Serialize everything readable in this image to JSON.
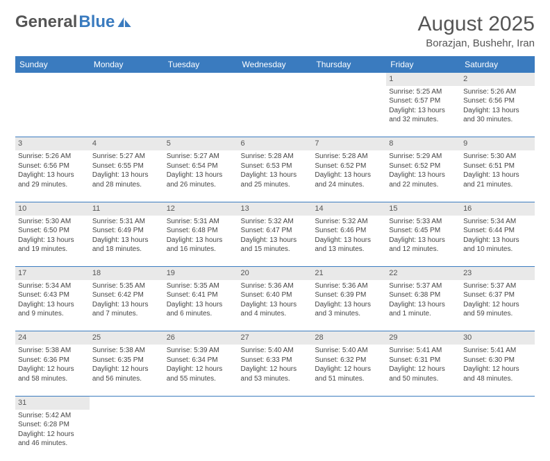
{
  "brand": {
    "part1": "General",
    "part2": "Blue"
  },
  "title": "August 2025",
  "location": "Borazjan, Bushehr, Iran",
  "colors": {
    "header_bg": "#3a7bbf",
    "header_text": "#ffffff",
    "daynum_bg": "#e9e9e9",
    "text": "#444444",
    "divider": "#3a7bbf"
  },
  "day_headers": [
    "Sunday",
    "Monday",
    "Tuesday",
    "Wednesday",
    "Thursday",
    "Friday",
    "Saturday"
  ],
  "weeks": [
    [
      null,
      null,
      null,
      null,
      null,
      {
        "d": "1",
        "sr": "5:25 AM",
        "ss": "6:57 PM",
        "dl": "13 hours and 32 minutes."
      },
      {
        "d": "2",
        "sr": "5:26 AM",
        "ss": "6:56 PM",
        "dl": "13 hours and 30 minutes."
      }
    ],
    [
      {
        "d": "3",
        "sr": "5:26 AM",
        "ss": "6:56 PM",
        "dl": "13 hours and 29 minutes."
      },
      {
        "d": "4",
        "sr": "5:27 AM",
        "ss": "6:55 PM",
        "dl": "13 hours and 28 minutes."
      },
      {
        "d": "5",
        "sr": "5:27 AM",
        "ss": "6:54 PM",
        "dl": "13 hours and 26 minutes."
      },
      {
        "d": "6",
        "sr": "5:28 AM",
        "ss": "6:53 PM",
        "dl": "13 hours and 25 minutes."
      },
      {
        "d": "7",
        "sr": "5:28 AM",
        "ss": "6:52 PM",
        "dl": "13 hours and 24 minutes."
      },
      {
        "d": "8",
        "sr": "5:29 AM",
        "ss": "6:52 PM",
        "dl": "13 hours and 22 minutes."
      },
      {
        "d": "9",
        "sr": "5:30 AM",
        "ss": "6:51 PM",
        "dl": "13 hours and 21 minutes."
      }
    ],
    [
      {
        "d": "10",
        "sr": "5:30 AM",
        "ss": "6:50 PM",
        "dl": "13 hours and 19 minutes."
      },
      {
        "d": "11",
        "sr": "5:31 AM",
        "ss": "6:49 PM",
        "dl": "13 hours and 18 minutes."
      },
      {
        "d": "12",
        "sr": "5:31 AM",
        "ss": "6:48 PM",
        "dl": "13 hours and 16 minutes."
      },
      {
        "d": "13",
        "sr": "5:32 AM",
        "ss": "6:47 PM",
        "dl": "13 hours and 15 minutes."
      },
      {
        "d": "14",
        "sr": "5:32 AM",
        "ss": "6:46 PM",
        "dl": "13 hours and 13 minutes."
      },
      {
        "d": "15",
        "sr": "5:33 AM",
        "ss": "6:45 PM",
        "dl": "13 hours and 12 minutes."
      },
      {
        "d": "16",
        "sr": "5:34 AM",
        "ss": "6:44 PM",
        "dl": "13 hours and 10 minutes."
      }
    ],
    [
      {
        "d": "17",
        "sr": "5:34 AM",
        "ss": "6:43 PM",
        "dl": "13 hours and 9 minutes."
      },
      {
        "d": "18",
        "sr": "5:35 AM",
        "ss": "6:42 PM",
        "dl": "13 hours and 7 minutes."
      },
      {
        "d": "19",
        "sr": "5:35 AM",
        "ss": "6:41 PM",
        "dl": "13 hours and 6 minutes."
      },
      {
        "d": "20",
        "sr": "5:36 AM",
        "ss": "6:40 PM",
        "dl": "13 hours and 4 minutes."
      },
      {
        "d": "21",
        "sr": "5:36 AM",
        "ss": "6:39 PM",
        "dl": "13 hours and 3 minutes."
      },
      {
        "d": "22",
        "sr": "5:37 AM",
        "ss": "6:38 PM",
        "dl": "13 hours and 1 minute."
      },
      {
        "d": "23",
        "sr": "5:37 AM",
        "ss": "6:37 PM",
        "dl": "12 hours and 59 minutes."
      }
    ],
    [
      {
        "d": "24",
        "sr": "5:38 AM",
        "ss": "6:36 PM",
        "dl": "12 hours and 58 minutes."
      },
      {
        "d": "25",
        "sr": "5:38 AM",
        "ss": "6:35 PM",
        "dl": "12 hours and 56 minutes."
      },
      {
        "d": "26",
        "sr": "5:39 AM",
        "ss": "6:34 PM",
        "dl": "12 hours and 55 minutes."
      },
      {
        "d": "27",
        "sr": "5:40 AM",
        "ss": "6:33 PM",
        "dl": "12 hours and 53 minutes."
      },
      {
        "d": "28",
        "sr": "5:40 AM",
        "ss": "6:32 PM",
        "dl": "12 hours and 51 minutes."
      },
      {
        "d": "29",
        "sr": "5:41 AM",
        "ss": "6:31 PM",
        "dl": "12 hours and 50 minutes."
      },
      {
        "d": "30",
        "sr": "5:41 AM",
        "ss": "6:30 PM",
        "dl": "12 hours and 48 minutes."
      }
    ],
    [
      {
        "d": "31",
        "sr": "5:42 AM",
        "ss": "6:28 PM",
        "dl": "12 hours and 46 minutes."
      },
      null,
      null,
      null,
      null,
      null,
      null
    ]
  ],
  "labels": {
    "sunrise": "Sunrise:",
    "sunset": "Sunset:",
    "daylight": "Daylight:"
  }
}
